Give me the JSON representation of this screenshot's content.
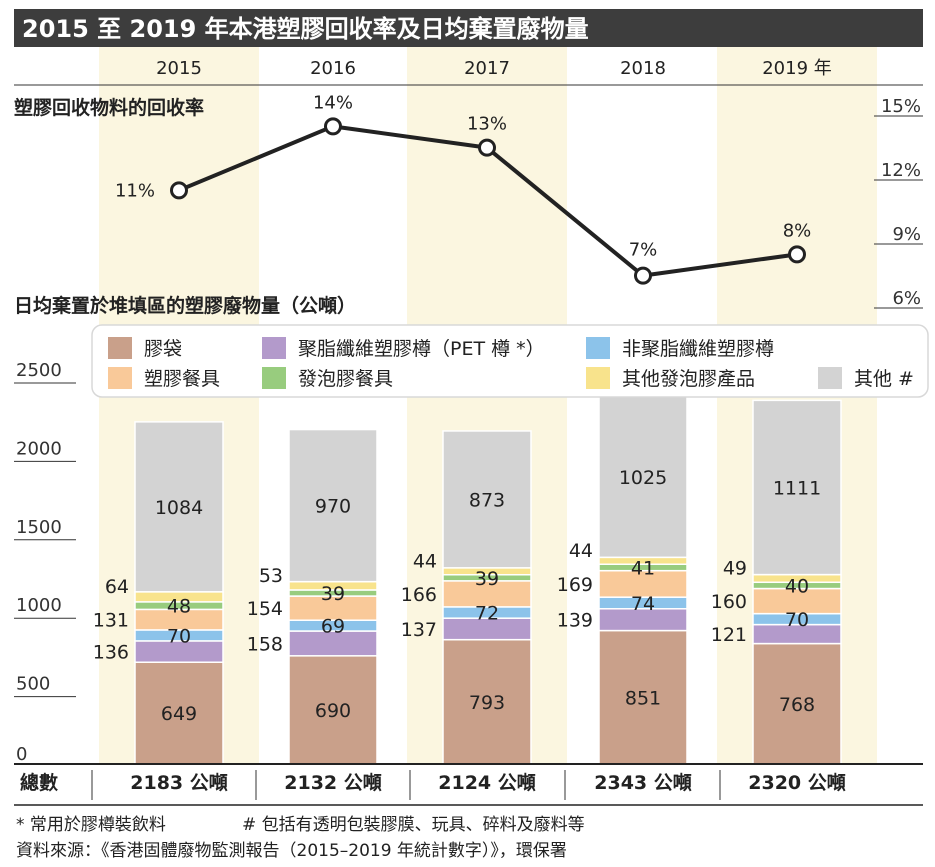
{
  "title": "2015 至 2019 年本港塑膠回收率及日均棄置廢物量",
  "years": [
    "2015",
    "2016",
    "2017",
    "2018",
    "2019 年"
  ],
  "colors": {
    "title_bg": "#3d3d3d",
    "column_stripe": "#fbf6e0",
    "line": "#222222",
    "bag": "#c9a08a",
    "pet": "#b39acb",
    "nonpet": "#8cc3ea",
    "tableware": "#f9c999",
    "foam": "#98cc7e",
    "otherfoam": "#f8e38c",
    "other": "#d3d3d3"
  },
  "chart_data": [
    {
      "type": "line",
      "title": "塑膠回收物料的回收率",
      "x": [
        "2015",
        "2016",
        "2017",
        "2018",
        "2019"
      ],
      "values": [
        11,
        14,
        13,
        7,
        8
      ],
      "value_labels": [
        "11%",
        "14%",
        "13%",
        "7%",
        "8%"
      ],
      "ylim": [
        5,
        16
      ],
      "y_ticks": [
        6,
        9,
        12,
        15
      ],
      "y_tick_labels": [
        "6%",
        "9%",
        "12%",
        "15%"
      ],
      "axis_side": "right"
    },
    {
      "type": "bar",
      "stacked": true,
      "title": "日均棄置於堆填區的塑膠廢物量（公噸）",
      "categories": [
        "2015",
        "2016",
        "2017",
        "2018",
        "2019"
      ],
      "ylim": [
        0,
        2500
      ],
      "y_ticks": [
        0,
        500,
        1000,
        1500,
        2000,
        2500
      ],
      "y_tick_labels": [
        "0",
        "500",
        "1000",
        "1500",
        "2000",
        "2500"
      ],
      "series": [
        {
          "key": "bag",
          "name": "膠袋",
          "values": [
            649,
            690,
            793,
            851,
            768
          ]
        },
        {
          "key": "pet",
          "name": "聚脂纖維塑膠樽（PET 樽 *）",
          "values": [
            136,
            158,
            137,
            139,
            121
          ]
        },
        {
          "key": "nonpet",
          "name": "非聚脂纖維塑膠樽",
          "values": [
            70,
            69,
            72,
            74,
            70
          ]
        },
        {
          "key": "tableware",
          "name": "塑膠餐具",
          "values": [
            131,
            154,
            166,
            169,
            160
          ]
        },
        {
          "key": "foam",
          "name": "發泡膠餐具",
          "values": [
            48,
            39,
            39,
            41,
            40
          ]
        },
        {
          "key": "otherfoam",
          "name": "其他發泡膠產品",
          "values": [
            64,
            53,
            44,
            44,
            49
          ]
        },
        {
          "key": "other",
          "name": "其他 #",
          "values": [
            1084,
            970,
            873,
            1025,
            1111
          ]
        }
      ],
      "total_label": "總數",
      "totals": [
        "2183 公噸",
        "2132 公噸",
        "2124 公噸",
        "2343 公噸",
        "2320 公噸"
      ]
    }
  ],
  "footnotes": {
    "note1": "* 常用於膠樽裝飲料",
    "note2": "# 包括有透明包裝膠膜、玩具、碎料及廢料等",
    "source": "資料來源：《香港固體廢物監測報告（2015–2019 年統計數字）》，環保署"
  }
}
